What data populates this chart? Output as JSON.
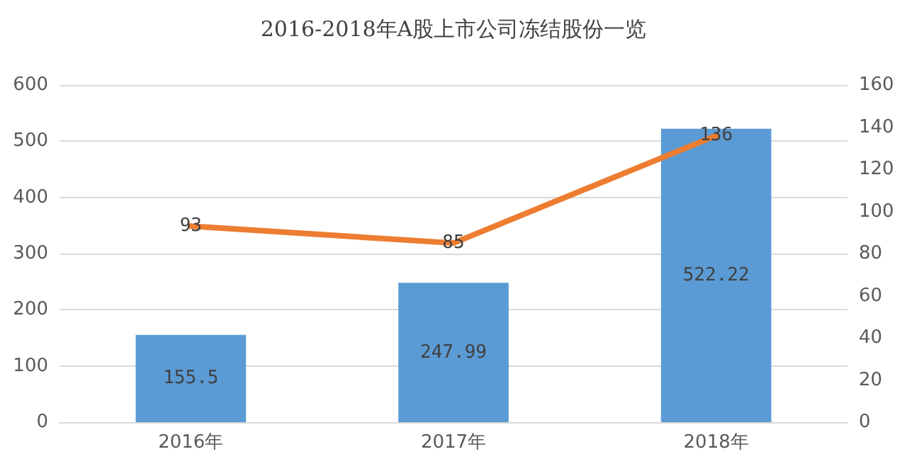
{
  "chart_data": {
    "type": "bar",
    "title": "2016-2018年A股上市公司冻结股份一览",
    "categories": [
      "2016年",
      "2017年",
      "2018年"
    ],
    "series": [
      {
        "color": "#5b9bd5",
        "values": [
          155.5,
          247.99,
          522.22
        ]
      },
      {
        "type": "line",
        "axis": "y2",
        "color": "#ed7d31",
        "values": [
          93,
          85,
          136
        ]
      }
    ],
    "ylim": [
      0,
      600
    ],
    "yticks": [
      0,
      100,
      200,
      300,
      400,
      500,
      600
    ],
    "y2lim": [
      0,
      160
    ],
    "y2ticks": [
      0,
      20,
      40,
      60,
      80,
      100,
      120,
      140,
      160
    ],
    "grid": "y",
    "data_labels": true,
    "marker": "none",
    "line_style": "solid"
  }
}
